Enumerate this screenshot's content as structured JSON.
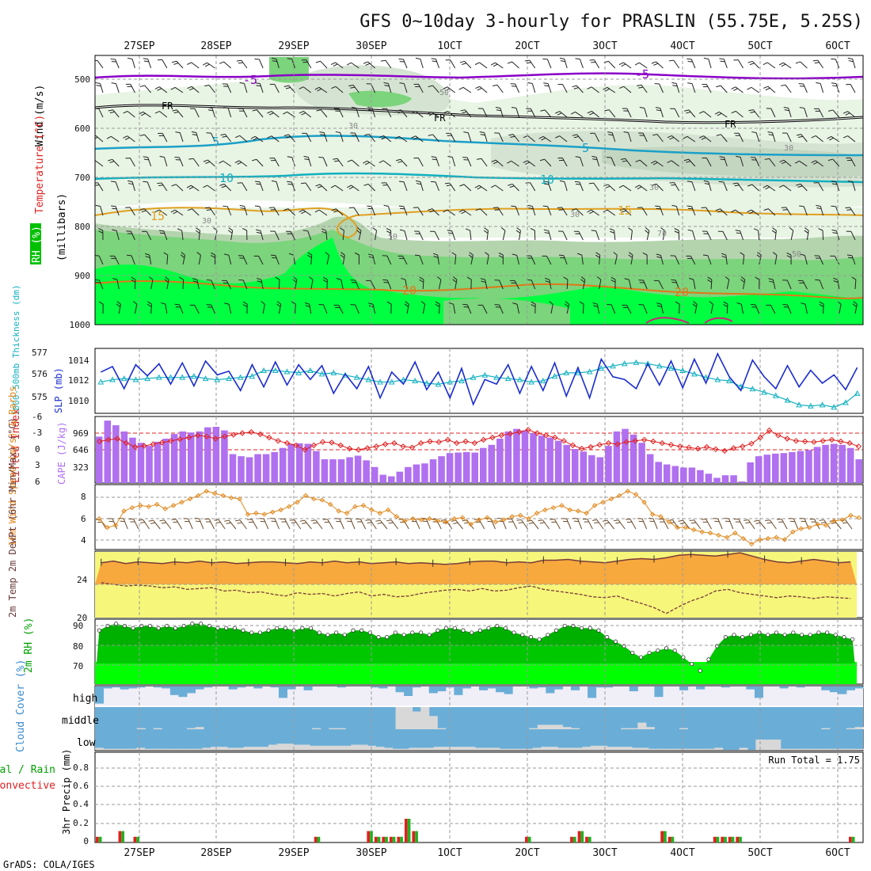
{
  "title": "GFS 0~10day 3-hourly for PRASLIN (55.75E, 5.25S)",
  "credit": "GrADS: COLA/IGES",
  "colors": {
    "purple": "#8a00c8",
    "cyan": "#1aa0c8",
    "teal": "#12b0c0",
    "orange": "#e0a020",
    "red": "#e02020",
    "blue": "#1a2ccf",
    "violet": "#b070f0",
    "green": "#00a000",
    "yellow": "#f6f67a",
    "tempfill": "#f7a93e",
    "cloudblue": "#6aaed8",
    "bright": "#00ff40"
  },
  "dates": [
    "27SEP",
    "28SEP",
    "29SEP",
    "30SEP",
    "1OCT",
    "2OCT",
    "3OCT",
    "4OCT",
    "5OCT",
    "6OCT"
  ],
  "chart_data": [
    {
      "panel": "upper-air",
      "type": "heatmap",
      "ylabels": {
        "wind": "Wind (m/s)",
        "temp": "Temperature (°C)",
        "rh": "RH (%)",
        "unit": "(millibars)"
      },
      "pressure_ticks": [
        "500",
        "600",
        "700",
        "800",
        "900",
        "1000"
      ],
      "ylim": [
        450,
        1000
      ],
      "temp_contours": [
        {
          "label": "-5",
          "hpa": 500
        },
        {
          "label": "FR",
          "hpa": 560
        },
        {
          "label": "5",
          "hpa": 640
        },
        {
          "label": "10",
          "hpa": 700
        },
        {
          "label": "15",
          "hpa": 775
        },
        {
          "label": "20",
          "hpa": 920
        }
      ],
      "rh_labels": [
        "30",
        "50",
        "70"
      ]
    },
    {
      "panel": "slp-thickness",
      "type": "line",
      "ylabel_left": "1000-500mb Thickness (dm)",
      "ylabel_right": "SLP (mb)",
      "left_ticks": [
        "575",
        "576",
        "577"
      ],
      "right_ticks": [
        "1010",
        "1012",
        "1014"
      ],
      "slp": [
        1012.8,
        1013.4,
        1011.0,
        1013.6,
        1012.4,
        1013.7,
        1011.5,
        1013.8,
        1011.3,
        1014.0,
        1012.5,
        1012.9,
        1010.8,
        1013.6,
        1011.2,
        1013.9,
        1011.4,
        1013.6,
        1012.0,
        1013.5,
        1010.5,
        1012.6,
        1011.0,
        1013.4,
        1010.0,
        1012.8,
        1011.5,
        1013.9,
        1010.9,
        1012.8,
        1010.0,
        1013.2,
        1009.3,
        1012.0,
        1011.5,
        1013.6,
        1010.5,
        1013.4,
        1010.8,
        1013.8,
        1010.2,
        1013.3,
        1010.0,
        1014.2,
        1012.3,
        1012.0,
        1011.0,
        1013.7,
        1011.4,
        1014.0,
        1011.1,
        1014.2,
        1011.6,
        1014.8,
        1012.3,
        1010.8,
        1014.1,
        1012.3,
        1011.0,
        1013.5,
        1011.2,
        1013.0,
        1011.6,
        1012.5,
        1010.9,
        1013.3
      ],
      "thickness": [
        575.8,
        575.9,
        575.95,
        575.9,
        575.95,
        576.0,
        576.0,
        576.0,
        576.05,
        575.95,
        575.9,
        575.95,
        576.0,
        576.05,
        576.3,
        576.3,
        576.25,
        576.2,
        576.3,
        576.15,
        576.2,
        576.1,
        576.0,
        575.9,
        575.8,
        575.8,
        575.9,
        575.85,
        575.75,
        575.7,
        575.8,
        575.85,
        576.0,
        576.1,
        576.0,
        575.95,
        575.9,
        575.8,
        575.85,
        576.05,
        576.2,
        576.2,
        576.25,
        576.4,
        576.5,
        576.6,
        576.65,
        576.6,
        576.5,
        576.4,
        576.3,
        576.15,
        576.0,
        575.9,
        575.85,
        575.6,
        575.5,
        575.35,
        575.2,
        575.0,
        574.8,
        574.75,
        574.8,
        574.7,
        574.9,
        575.3
      ],
      "thickness_range": [
        574.5,
        577.2
      ],
      "slp_range": [
        1008.5,
        1015.2
      ]
    },
    {
      "panel": "stability",
      "type": "bar",
      "ylabel_left": "Lifted Index",
      "ylabel_right": "CAPE (J/kg)",
      "li_ticks": [
        "-6",
        "-3",
        "0",
        "3",
        "6"
      ],
      "cape_ticks": [
        "323",
        "646",
        "969"
      ],
      "cape_max": 1290,
      "cape": [
        900,
        1210,
        1120,
        1000,
        880,
        780,
        720,
        800,
        860,
        950,
        1000,
        980,
        1000,
        1080,
        1090,
        1020,
        560,
        520,
        500,
        560,
        560,
        600,
        680,
        760,
        770,
        760,
        620,
        460,
        460,
        460,
        500,
        530,
        440,
        310,
        160,
        130,
        220,
        310,
        360,
        380,
        460,
        520,
        580,
        590,
        600,
        590,
        680,
        740,
        860,
        1000,
        1050,
        1020,
        970,
        920,
        880,
        820,
        740,
        660,
        610,
        540,
        500,
        720,
        1000,
        1050,
        940,
        780,
        560,
        410,
        360,
        330,
        300,
        300,
        250,
        180,
        100,
        150,
        150,
        30,
        400,
        520,
        550,
        570,
        580,
        600,
        620,
        640,
        700,
        740,
        760,
        740,
        680,
        460
      ],
      "lifted_index": [
        -1.5,
        -1.8,
        -2.0,
        -1.2,
        -0.5,
        -0.7,
        -1.0,
        -1.3,
        -1.6,
        -1.9,
        -2.2,
        -2.6,
        -2.4,
        -2.0,
        -2.4,
        -2.7,
        -3.0,
        -3.2,
        -2.8,
        -2.2,
        -1.6,
        -1.2,
        -0.8,
        0.0,
        -0.8,
        -1.4,
        -1.3,
        -0.8,
        -0.2,
        0.0,
        -0.3,
        -0.6,
        -1.0,
        -1.2,
        -0.6,
        -0.4,
        -1.2,
        -1.5,
        -1.4,
        -1.8,
        -1.2,
        -1.5,
        -1.2,
        -1.8,
        -2.2,
        -2.6,
        -2.9,
        -3.2,
        -3.6,
        -3.0,
        -2.6,
        -2.2,
        -1.6,
        -0.8,
        -0.2,
        -0.5,
        -0.9,
        -1.2,
        -1.0,
        -1.4,
        -1.6,
        -1.8,
        -1.5,
        -1.2,
        -0.9,
        -0.6,
        -0.4,
        -0.2,
        -0.5,
        -0.1,
        0.2,
        -0.3,
        -0.6,
        -1.1,
        -2.2,
        -3.5,
        -2.6,
        -2.0,
        -1.6,
        -1.5,
        -1.4,
        -1.6,
        -1.8,
        -1.5,
        -1.2,
        -0.6
      ]
    },
    {
      "panel": "wind10m",
      "type": "line",
      "ylabel": "10m Wind Speed (m/s) & Barbs",
      "ticks": [
        "4",
        "6",
        "8"
      ],
      "ylim": [
        3.3,
        9.2
      ],
      "speed": [
        6.1,
        5.3,
        5.5,
        6.8,
        7.1,
        7.3,
        7.2,
        7.4,
        7.0,
        7.3,
        7.6,
        7.9,
        8.2,
        8.6,
        8.4,
        8.2,
        8.0,
        7.9,
        6.5,
        6.6,
        6.5,
        6.7,
        6.9,
        7.2,
        7.6,
        8.2,
        7.9,
        7.8,
        7.4,
        6.8,
        6.6,
        7.2,
        7.3,
        6.9,
        6.6,
        6.9,
        6.3,
        5.9,
        6.1,
        6.0,
        6.1,
        5.9,
        5.8,
        6.1,
        6.2,
        5.6,
        6.0,
        6.2,
        5.8,
        6.0,
        6.3,
        6.4,
        6.1,
        6.6,
        6.9,
        7.1,
        7.3,
        6.9,
        6.8,
        6.6,
        7.3,
        7.6,
        7.9,
        8.2,
        8.6,
        8.3,
        7.6,
        6.5,
        6.3,
        5.8,
        5.3,
        5.3,
        5.1,
        4.9,
        4.8,
        4.6,
        4.4,
        4.8,
        4.3,
        3.8,
        4.2,
        4.3,
        4.4,
        4.2,
        4.9,
        5.2,
        5.3,
        5.6,
        5.5,
        5.9,
        6.0,
        6.4,
        6.2
      ]
    },
    {
      "panel": "temperature2m",
      "type": "area",
      "ylabel": "2m Temp 2m DewPt (6hr Min/Max) (°C)",
      "ticks": [
        "20",
        "24"
      ],
      "ylim": [
        20,
        28
      ],
      "temp": [
        26.6,
        26.8,
        26.5,
        26.7,
        26.6,
        26.5,
        26.7,
        26.6,
        26.8,
        26.6,
        26.7,
        26.5,
        26.6,
        26.7,
        26.7,
        26.6,
        26.5,
        26.7,
        26.6,
        26.8,
        26.6,
        26.7,
        26.5,
        26.6,
        26.7,
        26.5,
        26.6,
        26.5,
        26.4,
        26.5,
        26.7,
        26.8,
        26.8,
        26.6,
        26.7,
        26.6,
        26.9,
        26.9,
        27.0,
        26.8,
        26.7,
        26.6,
        26.8,
        27.0,
        27.1,
        27.0,
        27.2,
        27.5,
        27.6,
        27.5,
        27.4,
        27.6,
        27.8,
        27.4,
        27.0,
        26.7,
        26.6,
        26.8,
        27.0,
        26.8,
        26.6,
        26.7
      ],
      "dewpoint": [
        24.2,
        24.0,
        23.8,
        23.9,
        23.8,
        23.6,
        23.7,
        23.4,
        23.5,
        23.6,
        23.2,
        23.3,
        23.0,
        23.1,
        22.8,
        22.6,
        23.0,
        22.8,
        22.9,
        22.6,
        22.9,
        23.1,
        22.6,
        22.8,
        22.5,
        22.6,
        22.9,
        23.1,
        23.3,
        23.4,
        23.2,
        23.5,
        23.2,
        23.3,
        23.6,
        23.8,
        23.4,
        23.2,
        23.0,
        22.8,
        22.5,
        22.4,
        22.6,
        22.1,
        21.7,
        21.2,
        20.5,
        21.3,
        22.0,
        22.5,
        23.2,
        23.4,
        23.0,
        22.8,
        22.6,
        22.4,
        22.6,
        22.5,
        22.3,
        22.5,
        22.4,
        22.3
      ]
    },
    {
      "panel": "rh2m",
      "type": "area",
      "ylabel": "2m RH (%)",
      "ticks": [
        "70",
        "80",
        "90"
      ],
      "ylim": [
        63,
        92
      ],
      "rh": [
        87,
        89,
        90,
        89,
        88,
        89,
        89,
        88,
        89,
        88,
        89,
        90,
        90,
        89,
        88,
        88,
        88,
        87,
        86,
        86,
        87,
        88,
        88,
        87,
        88,
        88,
        86,
        85,
        86,
        85,
        87,
        87,
        86,
        84,
        84,
        86,
        85,
        86,
        86,
        85,
        87,
        88,
        88,
        87,
        86,
        87,
        88,
        89,
        88,
        86,
        85,
        84,
        83,
        85,
        87,
        89,
        89,
        88,
        88,
        87,
        84,
        82,
        80,
        77,
        75,
        77,
        78,
        79,
        78,
        75,
        72,
        69,
        74,
        80,
        84,
        85,
        84,
        85,
        86,
        85,
        86,
        85,
        86,
        85,
        85,
        86,
        86,
        85,
        84,
        83
      ]
    },
    {
      "panel": "cloud",
      "type": "bar",
      "ylabel": "Cloud Cover (%)",
      "levels": [
        "high",
        "middle",
        "low"
      ],
      "high": [
        90,
        10,
        5,
        15,
        10,
        5,
        0,
        5,
        10,
        45,
        55,
        35,
        15,
        5,
        0,
        0,
        15,
        5,
        0,
        10,
        0,
        5,
        60,
        15,
        0,
        20,
        0,
        0,
        0,
        5,
        0,
        0,
        0,
        5,
        10,
        0,
        30,
        50,
        5,
        0,
        35,
        25,
        5,
        45,
        10,
        0,
        20,
        10,
        30,
        40,
        0,
        0,
        10,
        5,
        35,
        15,
        0,
        20,
        0,
        60,
        5,
        5,
        0,
        0,
        25,
        0,
        0,
        55,
        0,
        0,
        20,
        0,
        15,
        0,
        0,
        5,
        0,
        0,
        15,
        60,
        0,
        0,
        10,
        0,
        5,
        0,
        0,
        20,
        30,
        40,
        20,
        10
      ],
      "middle": [
        0,
        0,
        0,
        0,
        0,
        5,
        0,
        5,
        0,
        0,
        0,
        5,
        10,
        0,
        0,
        0,
        0,
        0,
        0,
        0,
        0,
        0,
        0,
        0,
        0,
        0,
        5,
        0,
        5,
        5,
        0,
        0,
        0,
        0,
        0,
        0,
        100,
        100,
        80,
        100,
        60,
        5,
        0,
        0,
        0,
        0,
        0,
        0,
        0,
        0,
        0,
        0,
        5,
        20,
        20,
        20,
        10,
        5,
        0,
        0,
        0,
        0,
        0,
        5,
        5,
        30,
        10,
        0,
        0,
        0,
        5,
        0,
        0,
        0,
        0,
        0,
        0,
        0,
        0,
        0,
        0,
        0,
        0,
        0,
        0,
        0,
        0,
        5,
        0,
        0,
        5,
        10
      ],
      "low": [
        10,
        5,
        5,
        5,
        5,
        10,
        5,
        5,
        5,
        5,
        5,
        5,
        5,
        10,
        15,
        15,
        10,
        10,
        15,
        15,
        15,
        25,
        30,
        30,
        25,
        25,
        20,
        20,
        20,
        20,
        20,
        25,
        25,
        20,
        15,
        10,
        5,
        5,
        10,
        10,
        10,
        15,
        15,
        15,
        15,
        15,
        10,
        10,
        10,
        5,
        5,
        5,
        5,
        10,
        15,
        15,
        10,
        10,
        10,
        15,
        20,
        20,
        15,
        15,
        15,
        10,
        10,
        5,
        5,
        5,
        5,
        5,
        5,
        5,
        5,
        10,
        0,
        0,
        10,
        0,
        50,
        50,
        50,
        5,
        5,
        5,
        5,
        5,
        5,
        5,
        5,
        5,
        5
      ]
    },
    {
      "panel": "precip",
      "type": "bar",
      "ylabel": "3hr Precip (mm)",
      "legend_total": "Total / Rain",
      "legend_convective": "Convective",
      "run_total_label": "Run Total = 1.75",
      "ticks": [
        "0",
        "0.2",
        "0.4",
        "0.6",
        "0.8"
      ],
      "ylim": [
        0,
        0.95
      ],
      "precip": [
        0.06,
        0,
        0,
        0.12,
        0,
        0.06,
        0,
        0,
        0,
        0,
        0,
        0,
        0,
        0,
        0,
        0,
        0,
        0,
        0,
        0,
        0,
        0,
        0,
        0,
        0,
        0,
        0,
        0,
        0,
        0.06,
        0,
        0,
        0,
        0,
        0,
        0,
        0.12,
        0.06,
        0.06,
        0.06,
        0.06,
        0.25,
        0.12,
        0,
        0,
        0,
        0,
        0,
        0,
        0,
        0,
        0,
        0,
        0,
        0,
        0,
        0,
        0.06,
        0,
        0,
        0,
        0,
        0,
        0.06,
        0.12,
        0.06,
        0,
        0,
        0,
        0,
        0,
        0,
        0,
        0,
        0,
        0.12,
        0.06,
        0,
        0,
        0,
        0,
        0,
        0.06,
        0.06,
        0.06,
        0.06,
        0,
        0,
        0,
        0,
        0,
        0,
        0,
        0,
        0,
        0,
        0,
        0,
        0,
        0,
        0.06,
        0
      ]
    }
  ]
}
